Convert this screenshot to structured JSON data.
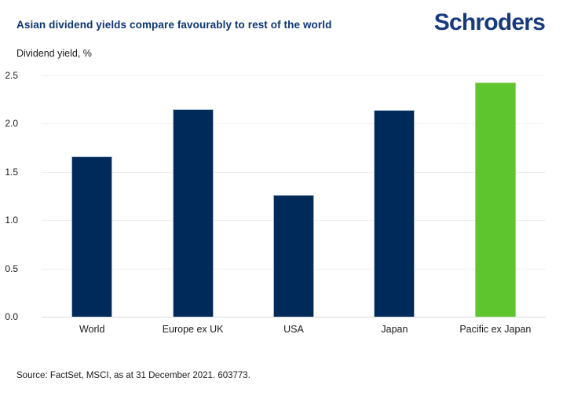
{
  "header": {
    "title": "Asian dividend yields compare favourably to rest of the world",
    "logo_text": "Schroders"
  },
  "chart_data": {
    "type": "bar",
    "title": "Asian dividend yields compare favourably to rest of the world",
    "ylabel": "Dividend yield, %",
    "xlabel": "",
    "categories": [
      "World",
      "Europe ex UK",
      "USA",
      "Japan",
      "Pacific ex Japan"
    ],
    "values": [
      1.66,
      2.15,
      1.26,
      2.14,
      2.43
    ],
    "bar_colors": [
      "#002a5a",
      "#002a5a",
      "#002a5a",
      "#002a5a",
      "#5ec52f"
    ],
    "bar_border_colors": [
      "#aabcd4",
      "#aabcd4",
      "#aabcd4",
      "#aabcd4",
      "#9bdb74"
    ],
    "ylim": [
      0,
      2.5
    ],
    "yticks": [
      "0.0",
      "0.5",
      "1.0",
      "1.5",
      "2.0",
      "2.5"
    ],
    "grid": "horizontal",
    "legend": "none"
  },
  "footer": {
    "source": "Source: FactSet, MSCI, as at 31 December 2021. 603773."
  },
  "colors": {
    "navy_bar": "#002a5a",
    "green_bar": "#5ec52f",
    "title_navy": "#0d3571",
    "logo_blue": "#17397e",
    "gridline": "#efefef",
    "baseline": "#d9d9d9"
  }
}
